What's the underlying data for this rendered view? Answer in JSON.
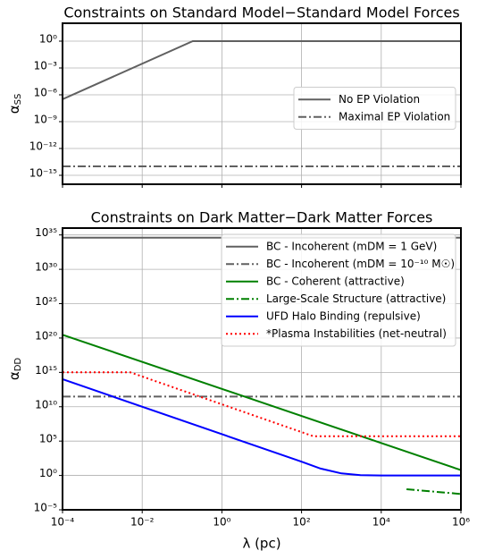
{
  "chart_data": [
    {
      "type": "line",
      "title": "Constraints on Standard Model−Standard Model Forces",
      "ylabel": {
        "symbol": "α",
        "subscript": "SS"
      },
      "xscale": "log",
      "yscale": "log",
      "grid": true,
      "legend": "center right",
      "xlim": [
        0.0001,
        1000000
      ],
      "ylim": [
        1e-16,
        100
      ],
      "xticks": [
        0.0001,
        0.01,
        1,
        100,
        10000,
        1000000
      ],
      "yticks": [
        {
          "value": 1,
          "label": "10⁰"
        },
        {
          "value": 0.001,
          "label": "10⁻³"
        },
        {
          "value": 1e-06,
          "label": "10⁻⁶"
        },
        {
          "value": 1e-09,
          "label": "10⁻⁹"
        },
        {
          "value": 1e-12,
          "label": "10⁻¹²"
        },
        {
          "value": 1e-15,
          "label": "10⁻¹⁵"
        }
      ],
      "series": [
        {
          "name": "No EP Violation",
          "color": "#606060",
          "style": "solid",
          "x": [
            0.0001,
            0.186,
            1000000
          ],
          "values": [
            3.16e-07,
            1,
            1
          ]
        },
        {
          "name": "Maximal EP Violation",
          "color": "#606060",
          "style": "dashdot",
          "x": [
            0.0001,
            1000000
          ],
          "values": [
            1e-14,
            1e-14
          ]
        }
      ]
    },
    {
      "type": "line",
      "title": "Constraints on Dark Matter−Dark Matter Forces",
      "xlabel": "λ (pc)",
      "ylabel": {
        "symbol": "α",
        "subscript": "DD"
      },
      "xscale": "log",
      "yscale": "log",
      "grid": true,
      "legend": "upper right",
      "xlim": [
        0.0001,
        1000000
      ],
      "ylim": [
        1e-05,
        1e+36
      ],
      "xticks": [
        {
          "value": 0.0001,
          "label": "10⁻⁴"
        },
        {
          "value": 0.01,
          "label": "10⁻²"
        },
        {
          "value": 1,
          "label": "10⁰"
        },
        {
          "value": 100,
          "label": "10²"
        },
        {
          "value": 10000,
          "label": "10⁴"
        },
        {
          "value": 1000000,
          "label": "10⁶"
        }
      ],
      "yticks": [
        {
          "value": 1e+35,
          "label": "10³⁵"
        },
        {
          "value": 1e+30,
          "label": "10³⁰"
        },
        {
          "value": 1e+25,
          "label": "10²⁵"
        },
        {
          "value": 1e+20,
          "label": "10²⁰"
        },
        {
          "value": 1000000000000000.0,
          "label": "10¹⁵"
        },
        {
          "value": 10000000000.0,
          "label": "10¹⁰"
        },
        {
          "value": 100000,
          "label": "10⁵"
        },
        {
          "value": 1,
          "label": "10⁰"
        },
        {
          "value": 1e-05,
          "label": "10⁻⁵"
        }
      ],
      "series": [
        {
          "name": "BC - Incoherent (mDM = 1 GeV)",
          "color": "#606060",
          "style": "solid",
          "x": [
            0.0001,
            1000000
          ],
          "values": [
            4e+34,
            4e+34
          ]
        },
        {
          "name": "BC - Incoherent (mDM = 10⁻¹⁰ M☉)",
          "color": "#606060",
          "style": "dashdot",
          "x": [
            0.0001,
            1000000
          ],
          "values": [
            300000000000.0,
            300000000000.0
          ]
        },
        {
          "name": "BC - Coherent (attractive)",
          "color": "#008000",
          "style": "solid",
          "x": [
            0.0001,
            1000000
          ],
          "values": [
            3e+20,
            6
          ]
        },
        {
          "name": "Large-Scale Structure (attractive)",
          "color": "#008000",
          "style": "dashdot",
          "x": [
            43000,
            1000000
          ],
          "values": [
            0.01,
            0.002
          ]
        },
        {
          "name": "UFD Halo Binding (repulsive)",
          "color": "#0000ff",
          "style": "solid",
          "x": [
            0.0001,
            100,
            300,
            1000,
            3000,
            10000,
            1000000
          ],
          "values": [
            100000000000000.0,
            100,
            10,
            2,
            1.1,
            1,
            1
          ]
        },
        {
          "name": "*Plasma Instabilities (net-neutral)",
          "color": "#ff0000",
          "style": "dotted",
          "x": [
            0.0001,
            0.005,
            200,
            1000000
          ],
          "values": [
            1000000000000000.0,
            1000000000000000.0,
            500000,
            500000
          ]
        }
      ]
    }
  ]
}
